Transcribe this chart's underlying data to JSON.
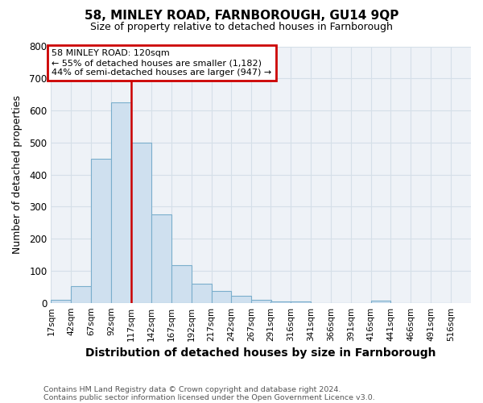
{
  "title1": "58, MINLEY ROAD, FARNBOROUGH, GU14 9QP",
  "title2": "Size of property relative to detached houses in Farnborough",
  "xlabel": "Distribution of detached houses by size in Farnborough",
  "ylabel": "Number of detached properties",
  "footnote1": "Contains HM Land Registry data © Crown copyright and database right 2024.",
  "footnote2": "Contains public sector information licensed under the Open Government Licence v3.0.",
  "annotation_line1": "58 MINLEY ROAD: 120sqm",
  "annotation_line2": "← 55% of detached houses are smaller (1,182)",
  "annotation_line3": "44% of semi-detached houses are larger (947) →",
  "bar_color": "#cfe0ef",
  "bar_edge_color": "#7aaecc",
  "vline_color": "#cc0000",
  "vline_x": 117,
  "bin_starts": [
    17,
    42,
    67,
    92,
    117,
    142,
    167,
    192,
    217,
    242,
    267,
    291,
    316,
    341,
    366,
    391,
    416,
    441,
    466,
    491
  ],
  "bin_width": 25,
  "bar_heights": [
    10,
    52,
    450,
    625,
    500,
    275,
    117,
    60,
    37,
    22,
    8,
    5,
    5,
    0,
    0,
    0,
    7,
    0,
    0,
    0
  ],
  "xlim_left": 17,
  "xlim_right": 541,
  "ylim_top": 800,
  "ylim_bottom": 0,
  "yticks": [
    0,
    100,
    200,
    300,
    400,
    500,
    600,
    700,
    800
  ],
  "xtick_labels": [
    "17sqm",
    "42sqm",
    "67sqm",
    "92sqm",
    "117sqm",
    "142sqm",
    "167sqm",
    "192sqm",
    "217sqm",
    "242sqm",
    "267sqm",
    "291sqm",
    "316sqm",
    "341sqm",
    "366sqm",
    "391sqm",
    "416sqm",
    "441sqm",
    "466sqm",
    "491sqm",
    "516sqm"
  ],
  "grid_color": "#d5dfe8",
  "bg_color": "#eef2f7",
  "annotation_box_color": "#cc0000",
  "title1_fontsize": 11,
  "title2_fontsize": 9,
  "xlabel_fontsize": 10,
  "ylabel_fontsize": 9,
  "tick_fontsize": 7.5,
  "ytick_fontsize": 8.5,
  "footnote_fontsize": 6.8
}
